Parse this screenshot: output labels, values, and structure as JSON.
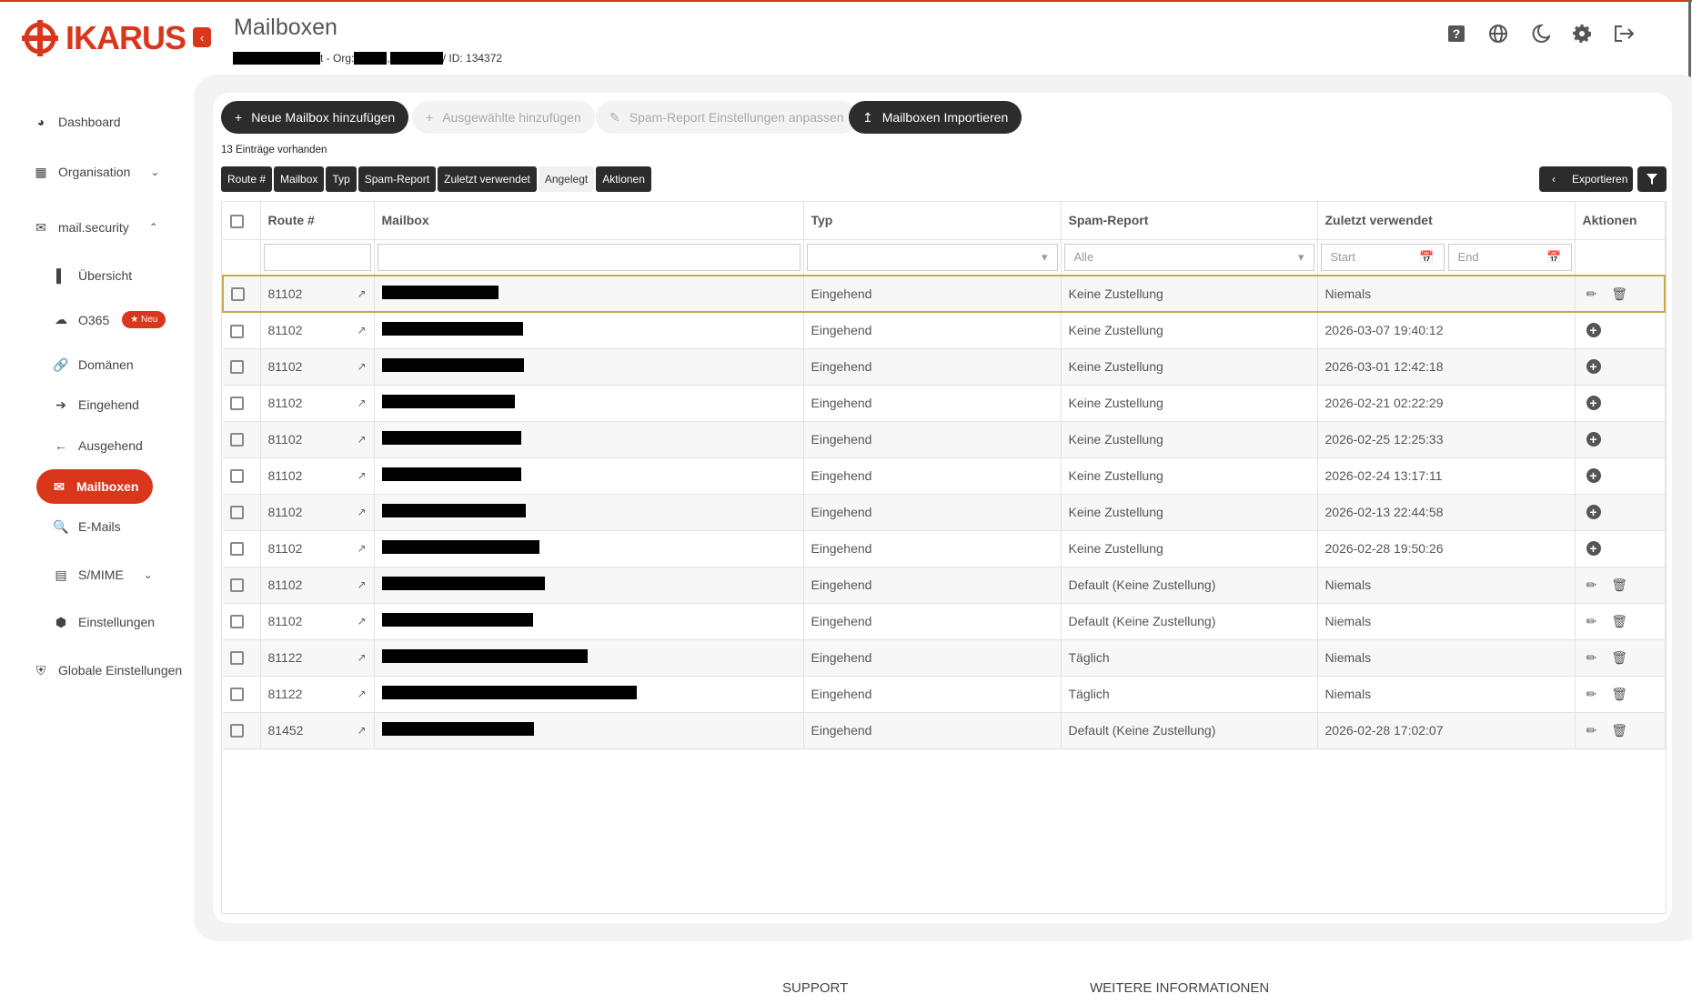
{
  "brand": {
    "logo_text": "IKARUS",
    "accent": "#d9361b"
  },
  "header": {
    "title": "Mailboxen",
    "subtitle_org": "t - Org:",
    "subtitle_id": "/ ID: 134372",
    "icons": [
      "help-icon",
      "globe-icon",
      "moon-icon",
      "gear-icon",
      "logout-icon"
    ]
  },
  "sidebar": {
    "items": [
      {
        "label": "Dashboard",
        "icon": "dashboard-icon"
      },
      {
        "label": "Organisation",
        "icon": "org-icon",
        "chevron": "down"
      },
      {
        "label": "mail.security",
        "icon": "mail-icon",
        "chevron": "up"
      },
      {
        "label": "Übersicht",
        "icon": "chart-icon"
      },
      {
        "label": "O365",
        "icon": "cloud-icon",
        "badge": "★ Neu"
      },
      {
        "label": "Domänen",
        "icon": "link-icon"
      },
      {
        "label": "Eingehend",
        "icon": "arrow-right-icon"
      },
      {
        "label": "Ausgehend",
        "icon": "arrow-left-icon"
      },
      {
        "label": "Mailboxen",
        "icon": "mailboxes-icon",
        "active": true
      },
      {
        "label": "E-Mails",
        "icon": "search-icon"
      },
      {
        "label": "S/MIME",
        "icon": "certificate-icon",
        "chevron": "down"
      },
      {
        "label": "Einstellungen",
        "icon": "settings-icon"
      },
      {
        "label": "Globale Einstellungen",
        "icon": "shield-icon"
      }
    ]
  },
  "toolbar": {
    "add": "Neue Mailbox hinzufügen",
    "add_selected": "Ausgewählte hinzufügen",
    "spam_settings": "Spam-Report Einstellungen anpassen",
    "import": "Mailboxen Importieren",
    "export": "Exportieren"
  },
  "count_text": "13 Einträge vorhanden",
  "column_toggles": [
    {
      "label": "Route #",
      "on": true
    },
    {
      "label": "Mailbox",
      "on": true
    },
    {
      "label": "Typ",
      "on": true
    },
    {
      "label": "Spam-Report",
      "on": true
    },
    {
      "label": "Zuletzt verwendet",
      "on": true
    },
    {
      "label": "Angelegt",
      "on": false
    },
    {
      "label": "Aktionen",
      "on": true
    }
  ],
  "table": {
    "headers": [
      "Route #",
      "Mailbox",
      "Typ",
      "Spam-Report",
      "Zuletzt verwendet",
      "Aktionen"
    ],
    "filters": {
      "typ": "",
      "spam": "Alle",
      "start": "Start",
      "end": "End"
    },
    "rows": [
      {
        "route": "81102",
        "typ": "Eingehend",
        "spam": "Keine Zustellung",
        "last": "Niemals",
        "actions": "edit",
        "selected": true
      },
      {
        "route": "81102",
        "typ": "Eingehend",
        "spam": "Keine Zustellung",
        "last": "2026-03-07 19:40:12",
        "actions": "add"
      },
      {
        "route": "81102",
        "typ": "Eingehend",
        "spam": "Keine Zustellung",
        "last": "2026-03-01 12:42:18",
        "actions": "add"
      },
      {
        "route": "81102",
        "typ": "Eingehend",
        "spam": "Keine Zustellung",
        "last": "2026-02-21 02:22:29",
        "actions": "add"
      },
      {
        "route": "81102",
        "typ": "Eingehend",
        "spam": "Keine Zustellung",
        "last": "2026-02-25 12:25:33",
        "actions": "add"
      },
      {
        "route": "81102",
        "typ": "Eingehend",
        "spam": "Keine Zustellung",
        "last": "2026-02-24 13:17:11",
        "actions": "add"
      },
      {
        "route": "81102",
        "typ": "Eingehend",
        "spam": "Keine Zustellung",
        "last": "2026-02-13 22:44:58",
        "actions": "add"
      },
      {
        "route": "81102",
        "typ": "Eingehend",
        "spam": "Keine Zustellung",
        "last": "2026-02-28 19:50:26",
        "actions": "add"
      },
      {
        "route": "81102",
        "typ": "Eingehend",
        "spam": "Default (Keine Zustellung)",
        "last": "Niemals",
        "actions": "edit"
      },
      {
        "route": "81102",
        "typ": "Eingehend",
        "spam": "Default (Keine Zustellung)",
        "last": "Niemals",
        "actions": "edit"
      },
      {
        "route": "81122",
        "typ": "Eingehend",
        "spam": "Täglich",
        "last": "Niemals",
        "actions": "edit"
      },
      {
        "route": "81122",
        "typ": "Eingehend",
        "spam": "Täglich",
        "last": "Niemals",
        "actions": "edit"
      },
      {
        "route": "81452",
        "typ": "Eingehend",
        "spam": "Default (Keine Zustellung)",
        "last": "2026-02-28 17:02:07",
        "actions": "edit"
      }
    ]
  },
  "footer": {
    "support": "SUPPORT",
    "more": "WEITERE INFORMATIONEN"
  }
}
